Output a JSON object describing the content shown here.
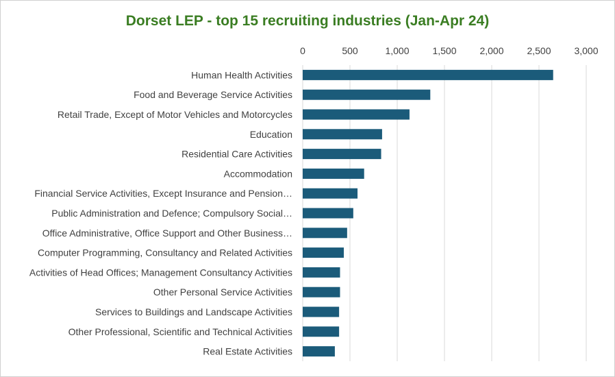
{
  "colors": {
    "title": "#3a7d22",
    "bar": "#1b5b7a",
    "grid": "#d9d9d9",
    "text": "#404040"
  },
  "chart_data": {
    "type": "bar",
    "orientation": "horizontal",
    "title": "Dorset LEP - top 15 recruiting industries (Jan-Apr 24)",
    "xlabel": "",
    "ylabel": "",
    "xlim": [
      0,
      3000
    ],
    "x_axis_position": "top",
    "x_ticks": [
      "0",
      "500",
      "1,000",
      "1,500",
      "2,000",
      "2,500",
      "3,000"
    ],
    "x_tick_values": [
      0,
      500,
      1000,
      1500,
      2000,
      2500,
      3000
    ],
    "grid": true,
    "legend": "none",
    "categories": [
      "Human Health Activities",
      "Food and Beverage Service Activities",
      "Retail Trade, Except of Motor Vehicles and Motorcycles",
      "Education",
      "Residential Care Activities",
      "Accommodation",
      "Financial Service Activities, Except Insurance and Pension…",
      "Public Administration and Defence; Compulsory Social…",
      "Office Administrative, Office Support and Other Business…",
      "Computer Programming, Consultancy and Related Activities",
      "Activities of Head Offices; Management Consultancy Activities",
      "Other Personal Service Activities",
      "Services to Buildings and Landscape Activities",
      "Other Professional, Scientific and Technical Activities",
      "Real Estate Activities"
    ],
    "values": [
      2650,
      1350,
      1130,
      840,
      830,
      650,
      580,
      535,
      470,
      435,
      395,
      395,
      385,
      385,
      340
    ]
  }
}
